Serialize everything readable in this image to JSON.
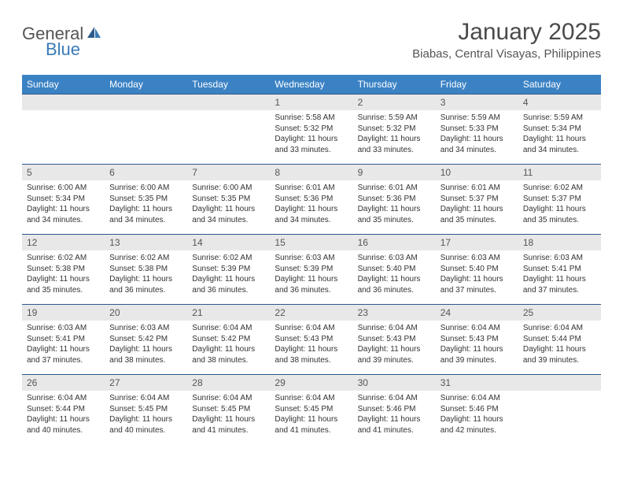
{
  "logo": {
    "general": "General",
    "blue": "Blue"
  },
  "title": "January 2025",
  "location": "Biabas, Central Visayas, Philippines",
  "colors": {
    "header_bg": "#3b82c4",
    "header_text": "#ffffff",
    "daynum_bg": "#e8e8e8",
    "row_border": "#2d5a8a",
    "body_text": "#333333",
    "logo_blue": "#3a7ab8",
    "logo_gray": "#555555"
  },
  "weekdays": [
    "Sunday",
    "Monday",
    "Tuesday",
    "Wednesday",
    "Thursday",
    "Friday",
    "Saturday"
  ],
  "weeks": [
    [
      {
        "blank": true
      },
      {
        "blank": true
      },
      {
        "blank": true
      },
      {
        "n": "1",
        "sr": "Sunrise: 5:58 AM",
        "ss": "Sunset: 5:32 PM",
        "d1": "Daylight: 11 hours",
        "d2": "and 33 minutes."
      },
      {
        "n": "2",
        "sr": "Sunrise: 5:59 AM",
        "ss": "Sunset: 5:32 PM",
        "d1": "Daylight: 11 hours",
        "d2": "and 33 minutes."
      },
      {
        "n": "3",
        "sr": "Sunrise: 5:59 AM",
        "ss": "Sunset: 5:33 PM",
        "d1": "Daylight: 11 hours",
        "d2": "and 34 minutes."
      },
      {
        "n": "4",
        "sr": "Sunrise: 5:59 AM",
        "ss": "Sunset: 5:34 PM",
        "d1": "Daylight: 11 hours",
        "d2": "and 34 minutes."
      }
    ],
    [
      {
        "n": "5",
        "sr": "Sunrise: 6:00 AM",
        "ss": "Sunset: 5:34 PM",
        "d1": "Daylight: 11 hours",
        "d2": "and 34 minutes."
      },
      {
        "n": "6",
        "sr": "Sunrise: 6:00 AM",
        "ss": "Sunset: 5:35 PM",
        "d1": "Daylight: 11 hours",
        "d2": "and 34 minutes."
      },
      {
        "n": "7",
        "sr": "Sunrise: 6:00 AM",
        "ss": "Sunset: 5:35 PM",
        "d1": "Daylight: 11 hours",
        "d2": "and 34 minutes."
      },
      {
        "n": "8",
        "sr": "Sunrise: 6:01 AM",
        "ss": "Sunset: 5:36 PM",
        "d1": "Daylight: 11 hours",
        "d2": "and 34 minutes."
      },
      {
        "n": "9",
        "sr": "Sunrise: 6:01 AM",
        "ss": "Sunset: 5:36 PM",
        "d1": "Daylight: 11 hours",
        "d2": "and 35 minutes."
      },
      {
        "n": "10",
        "sr": "Sunrise: 6:01 AM",
        "ss": "Sunset: 5:37 PM",
        "d1": "Daylight: 11 hours",
        "d2": "and 35 minutes."
      },
      {
        "n": "11",
        "sr": "Sunrise: 6:02 AM",
        "ss": "Sunset: 5:37 PM",
        "d1": "Daylight: 11 hours",
        "d2": "and 35 minutes."
      }
    ],
    [
      {
        "n": "12",
        "sr": "Sunrise: 6:02 AM",
        "ss": "Sunset: 5:38 PM",
        "d1": "Daylight: 11 hours",
        "d2": "and 35 minutes."
      },
      {
        "n": "13",
        "sr": "Sunrise: 6:02 AM",
        "ss": "Sunset: 5:38 PM",
        "d1": "Daylight: 11 hours",
        "d2": "and 36 minutes."
      },
      {
        "n": "14",
        "sr": "Sunrise: 6:02 AM",
        "ss": "Sunset: 5:39 PM",
        "d1": "Daylight: 11 hours",
        "d2": "and 36 minutes."
      },
      {
        "n": "15",
        "sr": "Sunrise: 6:03 AM",
        "ss": "Sunset: 5:39 PM",
        "d1": "Daylight: 11 hours",
        "d2": "and 36 minutes."
      },
      {
        "n": "16",
        "sr": "Sunrise: 6:03 AM",
        "ss": "Sunset: 5:40 PM",
        "d1": "Daylight: 11 hours",
        "d2": "and 36 minutes."
      },
      {
        "n": "17",
        "sr": "Sunrise: 6:03 AM",
        "ss": "Sunset: 5:40 PM",
        "d1": "Daylight: 11 hours",
        "d2": "and 37 minutes."
      },
      {
        "n": "18",
        "sr": "Sunrise: 6:03 AM",
        "ss": "Sunset: 5:41 PM",
        "d1": "Daylight: 11 hours",
        "d2": "and 37 minutes."
      }
    ],
    [
      {
        "n": "19",
        "sr": "Sunrise: 6:03 AM",
        "ss": "Sunset: 5:41 PM",
        "d1": "Daylight: 11 hours",
        "d2": "and 37 minutes."
      },
      {
        "n": "20",
        "sr": "Sunrise: 6:03 AM",
        "ss": "Sunset: 5:42 PM",
        "d1": "Daylight: 11 hours",
        "d2": "and 38 minutes."
      },
      {
        "n": "21",
        "sr": "Sunrise: 6:04 AM",
        "ss": "Sunset: 5:42 PM",
        "d1": "Daylight: 11 hours",
        "d2": "and 38 minutes."
      },
      {
        "n": "22",
        "sr": "Sunrise: 6:04 AM",
        "ss": "Sunset: 5:43 PM",
        "d1": "Daylight: 11 hours",
        "d2": "and 38 minutes."
      },
      {
        "n": "23",
        "sr": "Sunrise: 6:04 AM",
        "ss": "Sunset: 5:43 PM",
        "d1": "Daylight: 11 hours",
        "d2": "and 39 minutes."
      },
      {
        "n": "24",
        "sr": "Sunrise: 6:04 AM",
        "ss": "Sunset: 5:43 PM",
        "d1": "Daylight: 11 hours",
        "d2": "and 39 minutes."
      },
      {
        "n": "25",
        "sr": "Sunrise: 6:04 AM",
        "ss": "Sunset: 5:44 PM",
        "d1": "Daylight: 11 hours",
        "d2": "and 39 minutes."
      }
    ],
    [
      {
        "n": "26",
        "sr": "Sunrise: 6:04 AM",
        "ss": "Sunset: 5:44 PM",
        "d1": "Daylight: 11 hours",
        "d2": "and 40 minutes."
      },
      {
        "n": "27",
        "sr": "Sunrise: 6:04 AM",
        "ss": "Sunset: 5:45 PM",
        "d1": "Daylight: 11 hours",
        "d2": "and 40 minutes."
      },
      {
        "n": "28",
        "sr": "Sunrise: 6:04 AM",
        "ss": "Sunset: 5:45 PM",
        "d1": "Daylight: 11 hours",
        "d2": "and 41 minutes."
      },
      {
        "n": "29",
        "sr": "Sunrise: 6:04 AM",
        "ss": "Sunset: 5:45 PM",
        "d1": "Daylight: 11 hours",
        "d2": "and 41 minutes."
      },
      {
        "n": "30",
        "sr": "Sunrise: 6:04 AM",
        "ss": "Sunset: 5:46 PM",
        "d1": "Daylight: 11 hours",
        "d2": "and 41 minutes."
      },
      {
        "n": "31",
        "sr": "Sunrise: 6:04 AM",
        "ss": "Sunset: 5:46 PM",
        "d1": "Daylight: 11 hours",
        "d2": "and 42 minutes."
      },
      {
        "blank": true
      }
    ]
  ]
}
